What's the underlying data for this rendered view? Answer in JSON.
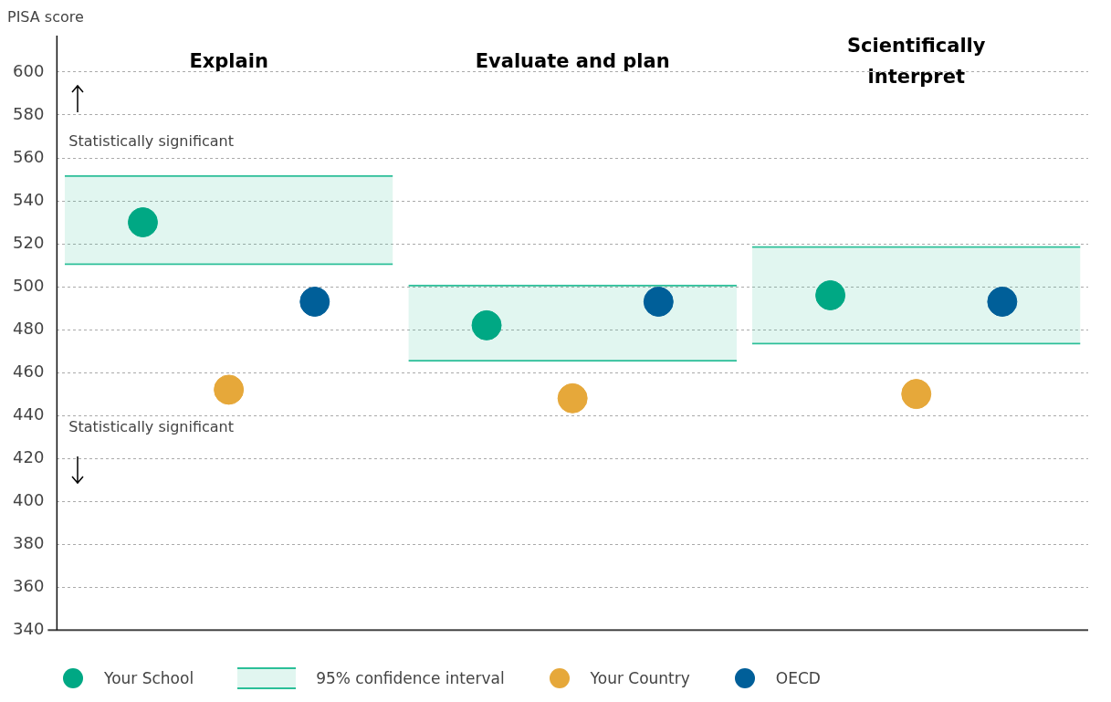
{
  "chart_data": {
    "type": "bar",
    "ylabel": "PISA score",
    "categories": [
      "Explain",
      "Evaluate and plan",
      "Scientifically interpret"
    ],
    "series": [
      {
        "type": "scatter",
        "name": "Your School",
        "color": "#00a884",
        "x": [
          "Explain",
          "Evaluate and plan",
          "Scientifically interpret"
        ],
        "values": [
          530,
          482,
          496
        ]
      },
      {
        "name": "95% confidence interval",
        "color": "#2bbf98",
        "base": [
          510,
          465,
          473
        ],
        "values": [
          42,
          36,
          46
        ]
      },
      {
        "type": "scatter",
        "name": "Your Country",
        "color": "#e6a83a",
        "x": [
          "Explain",
          "Evaluate and plan",
          "Scientifically interpret"
        ],
        "values": [
          452,
          448,
          450
        ]
      },
      {
        "type": "scatter",
        "name": "OECD",
        "color": "#005f99",
        "x": [
          "Explain",
          "Evaluate and plan",
          "Scientifically interpret"
        ],
        "values": [
          493,
          493,
          493
        ]
      }
    ],
    "ylim": [
      340,
      617
    ],
    "yticks": [
      340,
      360,
      380,
      400,
      420,
      440,
      460,
      480,
      500,
      520,
      540,
      560,
      580,
      600
    ],
    "grid": "y",
    "legend": "bottom",
    "marker": "circle",
    "annotations": [
      "Statistically significant",
      "Statistically significant"
    ]
  }
}
